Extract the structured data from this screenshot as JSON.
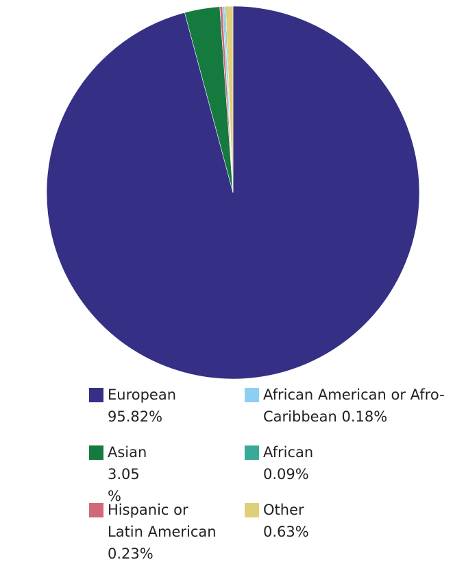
{
  "chart_data": {
    "type": "pie",
    "categories": [
      "European",
      "Asian",
      "Hispanic or Latin American",
      "African American or Afro-Caribbean",
      "African",
      "Other"
    ],
    "values": [
      95.82,
      3.05,
      0.23,
      0.18,
      0.09,
      0.63
    ],
    "value_labels": [
      "95.82%",
      "3.05 %",
      "0.23%",
      "0.18%",
      "0.09%",
      "0.63%"
    ],
    "colors": [
      "#352f85",
      "#157a3e",
      "#d06878",
      "#8dcff0",
      "#3aaa98",
      "#e0cf7a"
    ]
  }
}
